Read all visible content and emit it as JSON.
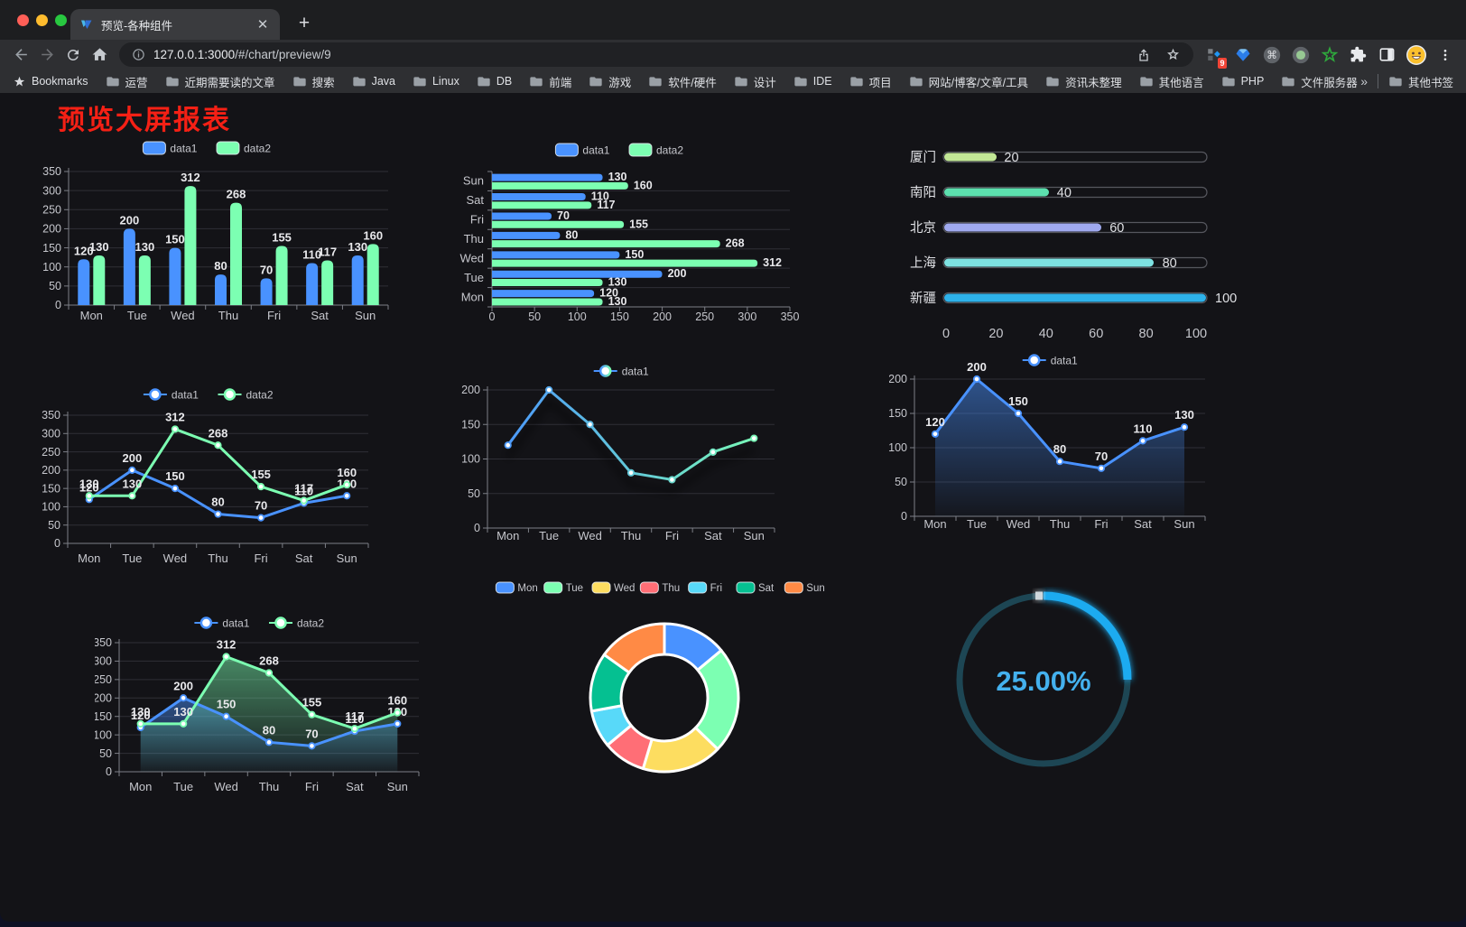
{
  "browser": {
    "tab_title": "预览-各种组件",
    "url_host": "127.0.0.1:3000",
    "url_path": "/#/chart/preview/9",
    "extensions_badge": "9",
    "bookmarks_bar": {
      "bookmarks_label": "Bookmarks",
      "folders": [
        "运营",
        "近期需要读的文章",
        "搜索",
        "Java",
        "Linux",
        "DB",
        "前端",
        "游戏",
        "软件/硬件",
        "设计",
        "IDE",
        "项目",
        "网站/博客/文章/工具",
        "资讯未整理",
        "其他语言",
        "PHP",
        "文件服务器"
      ],
      "overflow": "»",
      "other_bookmarks": "其他书签"
    }
  },
  "page": {
    "title": "预览大屏报表"
  },
  "palette": {
    "blue": "#4992ff",
    "green": "#7cffb2",
    "yellow": "#fddd60",
    "red": "#ff6e76",
    "cyan": "#58d9f9",
    "teal": "#05c091",
    "orange": "#ff8a45"
  },
  "chart_data": [
    {
      "id": "grouped-bar",
      "type": "bar",
      "categories": [
        "Mon",
        "Tue",
        "Wed",
        "Thu",
        "Fri",
        "Sat",
        "Sun"
      ],
      "series": [
        {
          "name": "data1",
          "color": "#4992ff",
          "values": [
            120,
            200,
            150,
            80,
            70,
            110,
            130
          ]
        },
        {
          "name": "data2",
          "color": "#7cffb2",
          "values": [
            130,
            130,
            312,
            268,
            155,
            117,
            160
          ]
        }
      ],
      "ylim": [
        0,
        350
      ],
      "yticks": [
        0,
        50,
        100,
        150,
        200,
        250,
        300,
        350
      ],
      "legend_position": "top-center",
      "grid": true
    },
    {
      "id": "horizontal-bar",
      "type": "bar",
      "orientation": "horizontal",
      "categories": [
        "Mon",
        "Tue",
        "Wed",
        "Thu",
        "Fri",
        "Sat",
        "Sun"
      ],
      "categories_displayed_top_to_bottom": [
        "Sun",
        "Sat",
        "Fri",
        "Thu",
        "Wed",
        "Tue",
        "Mon"
      ],
      "series": [
        {
          "name": "data1",
          "color": "#4992ff",
          "values": [
            120,
            200,
            150,
            80,
            70,
            110,
            130
          ]
        },
        {
          "name": "data2",
          "color": "#7cffb2",
          "values": [
            130,
            130,
            312,
            268,
            155,
            117,
            160
          ]
        }
      ],
      "xlim": [
        0,
        350
      ],
      "xticks": [
        0,
        50,
        100,
        150,
        200,
        250,
        300,
        350
      ],
      "legend_position": "top-center",
      "grid": true
    },
    {
      "id": "progress-bars",
      "type": "bar",
      "subtype": "progress-capsules",
      "items": [
        {
          "label": "厦门",
          "value": 20,
          "color": "#c2e796"
        },
        {
          "label": "南阳",
          "value": 40,
          "color": "#5ce0ae"
        },
        {
          "label": "北京",
          "value": 60,
          "color": "#9fa9ef"
        },
        {
          "label": "上海",
          "value": 80,
          "color": "#7ee2e2"
        },
        {
          "label": "新疆",
          "value": 100,
          "color": "#2eb2ea"
        }
      ],
      "xlim": [
        0,
        100
      ],
      "xticks": [
        0,
        20,
        40,
        60,
        80,
        100
      ]
    },
    {
      "id": "line-two-series",
      "type": "line",
      "categories": [
        "Mon",
        "Tue",
        "Wed",
        "Thu",
        "Fri",
        "Sat",
        "Sun"
      ],
      "series": [
        {
          "name": "data1",
          "color": "#4992ff",
          "values": [
            120,
            200,
            150,
            80,
            70,
            110,
            130
          ]
        },
        {
          "name": "data2",
          "color": "#7cffb2",
          "values": [
            130,
            130,
            312,
            268,
            155,
            117,
            160
          ]
        }
      ],
      "ylim": [
        0,
        350
      ],
      "yticks": [
        0,
        50,
        100,
        150,
        200,
        250,
        300,
        350
      ],
      "show_labels": true,
      "legend_position": "top-center"
    },
    {
      "id": "gradient-line",
      "type": "line",
      "categories": [
        "Mon",
        "Tue",
        "Wed",
        "Thu",
        "Fri",
        "Sat",
        "Sun"
      ],
      "series": [
        {
          "name": "data1",
          "gradient": [
            "#4992ff",
            "#7cffb2"
          ],
          "values": [
            120,
            200,
            150,
            80,
            70,
            110,
            130
          ]
        }
      ],
      "ylim": [
        0,
        200
      ],
      "yticks": [
        0,
        50,
        100,
        150,
        200
      ],
      "show_labels": false,
      "shadow": true,
      "legend_position": "top-center"
    },
    {
      "id": "area-line",
      "type": "area",
      "categories": [
        "Mon",
        "Tue",
        "Wed",
        "Thu",
        "Fri",
        "Sat",
        "Sun"
      ],
      "series": [
        {
          "name": "data1",
          "color": "#4992ff",
          "area": true,
          "values": [
            120,
            200,
            150,
            80,
            70,
            110,
            130
          ]
        }
      ],
      "ylim": [
        0,
        200
      ],
      "yticks": [
        0,
        50,
        100,
        150,
        200
      ],
      "show_labels": true,
      "legend_position": "top-center"
    },
    {
      "id": "two-area",
      "type": "area",
      "categories": [
        "Mon",
        "Tue",
        "Wed",
        "Thu",
        "Fri",
        "Sat",
        "Sun"
      ],
      "series": [
        {
          "name": "data1",
          "color": "#4992ff",
          "area": true,
          "values": [
            120,
            200,
            150,
            80,
            70,
            110,
            130
          ]
        },
        {
          "name": "data2",
          "color": "#7cffb2",
          "area": true,
          "values": [
            130,
            130,
            312,
            268,
            155,
            117,
            160
          ]
        }
      ],
      "ylim": [
        0,
        350
      ],
      "yticks": [
        0,
        50,
        100,
        150,
        200,
        250,
        300,
        350
      ],
      "show_labels": true,
      "legend_position": "top-center"
    },
    {
      "id": "donut",
      "type": "pie",
      "inner_radius_ratio": 0.585,
      "labels": [
        "Mon",
        "Tue",
        "Wed",
        "Thu",
        "Fri",
        "Sat",
        "Sun"
      ],
      "values": [
        120,
        200,
        150,
        80,
        70,
        110,
        130
      ],
      "colors": [
        "#4992ff",
        "#7cffb2",
        "#fddd60",
        "#ff6e76",
        "#58d9f9",
        "#05c091",
        "#ff8a45"
      ],
      "legend_position": "top-center"
    },
    {
      "id": "gauge",
      "type": "gauge",
      "value": 25,
      "display": "25.00%",
      "max": 100,
      "progress_color": "#1fabf0",
      "track_color": "#1d4654",
      "text_color": "#44b1ee"
    }
  ]
}
